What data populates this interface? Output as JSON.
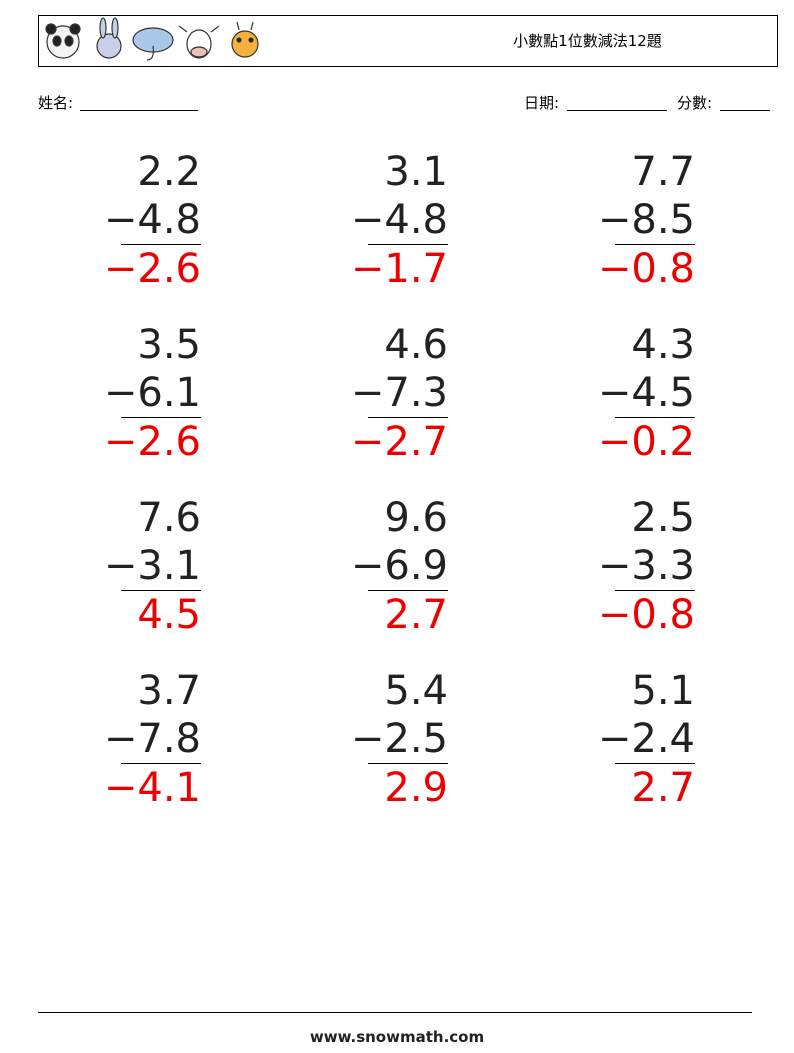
{
  "header": {
    "title": "小數點1位數減法12題"
  },
  "fields": {
    "name": "姓名:",
    "date": "日期:",
    "score": "分數:"
  },
  "problems": [
    [
      "2.2",
      "−4.8",
      "−2.6"
    ],
    [
      "3.1",
      "−4.8",
      "−1.7"
    ],
    [
      "7.7",
      "−8.5",
      "−0.8"
    ],
    [
      "3.5",
      "−6.1",
      "−2.6"
    ],
    [
      "4.6",
      "−7.3",
      "−2.7"
    ],
    [
      "4.3",
      "−4.5",
      "−0.2"
    ],
    [
      "7.6",
      "−3.1",
      "4.5"
    ],
    [
      "9.6",
      "−6.9",
      "2.7"
    ],
    [
      "2.5",
      "−3.3",
      "−0.8"
    ],
    [
      "3.7",
      "−7.8",
      "−4.1"
    ],
    [
      "5.4",
      "−2.5",
      "2.9"
    ],
    [
      "5.1",
      "−2.4",
      "2.7"
    ]
  ],
  "footer": "www.snowmath.com"
}
